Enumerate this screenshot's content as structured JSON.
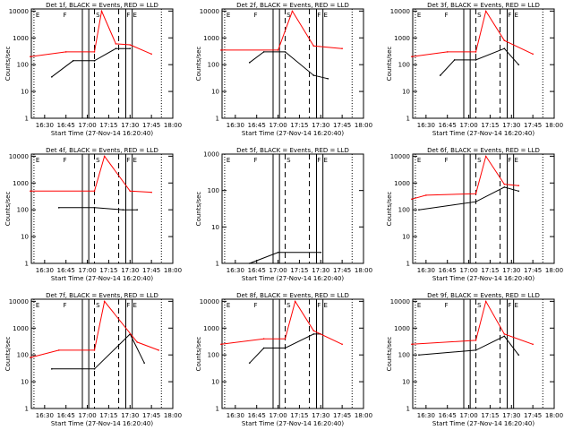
{
  "axis": {
    "ylabel": "Counts/sec",
    "xlabel": "Start Time (27-Nov-14 16:20:40)",
    "xticks": [
      "16:30",
      "16:45",
      "17:00",
      "17:15",
      "17:30",
      "17:45",
      "18:00"
    ],
    "yticks": [
      "1",
      "10",
      "100",
      "1000",
      "10000"
    ],
    "yticks_5f": [
      "1",
      "10",
      "100",
      "1000"
    ]
  },
  "colors": {
    "events": "#000000",
    "lld": "#ff0000"
  },
  "chart_data": [
    {
      "id": "det1f",
      "type": "line",
      "title": "Det 1f, BLACK = Events, RED = LLD",
      "ylog": true,
      "ylim": [
        1,
        12000
      ],
      "xlim": [
        "16:20:40",
        "18:00"
      ],
      "markers": [
        "E",
        "F",
        "S",
        "F",
        "E"
      ],
      "series": [
        {
          "name": "Events",
          "values_approx": [
            {
              "x": "16:35",
              "y": 35
            },
            {
              "x": "16:50",
              "y": 140
            },
            {
              "x": "17:05",
              "y": 140
            },
            {
              "x": "17:20",
              "y": 400
            },
            {
              "x": "17:30",
              "y": 400
            }
          ]
        },
        {
          "name": "LLD",
          "values_approx": [
            {
              "x": "16:20",
              "y": 200
            },
            {
              "x": "16:45",
              "y": 300
            },
            {
              "x": "17:05",
              "y": 300
            },
            {
              "x": "17:10",
              "y": 10000
            },
            {
              "x": "17:20",
              "y": 600
            },
            {
              "x": "17:30",
              "y": 550
            },
            {
              "x": "17:45",
              "y": 250
            }
          ]
        }
      ]
    },
    {
      "id": "det2f",
      "type": "line",
      "title": "Det 2f, BLACK = Events, RED = LLD",
      "ylog": true,
      "ylim": [
        1,
        12000
      ],
      "xlim": [
        "16:20:40",
        "18:00"
      ],
      "markers": [
        "E",
        "F",
        "S",
        "F",
        "E"
      ],
      "series": [
        {
          "name": "Events",
          "values_approx": [
            {
              "x": "16:40",
              "y": 120
            },
            {
              "x": "16:50",
              "y": 300
            },
            {
              "x": "17:05",
              "y": 300
            },
            {
              "x": "17:25",
              "y": 40
            },
            {
              "x": "17:35",
              "y": 30
            }
          ]
        },
        {
          "name": "LLD",
          "values_approx": [
            {
              "x": "16:20",
              "y": 350
            },
            {
              "x": "17:00",
              "y": 350
            },
            {
              "x": "17:10",
              "y": 10000
            },
            {
              "x": "17:25",
              "y": 500
            },
            {
              "x": "17:45",
              "y": 400
            }
          ]
        }
      ]
    },
    {
      "id": "det3f",
      "type": "line",
      "title": "Det 3f, BLACK = Events, RED = LLD",
      "ylog": true,
      "ylim": [
        1,
        12000
      ],
      "xlim": [
        "16:20:40",
        "18:00"
      ],
      "markers": [
        "E",
        "F",
        "S",
        "F",
        "E"
      ],
      "series": [
        {
          "name": "Events",
          "values_approx": [
            {
              "x": "16:40",
              "y": 40
            },
            {
              "x": "16:50",
              "y": 150
            },
            {
              "x": "17:05",
              "y": 150
            },
            {
              "x": "17:25",
              "y": 400
            },
            {
              "x": "17:35",
              "y": 100
            }
          ]
        },
        {
          "name": "LLD",
          "values_approx": [
            {
              "x": "16:20",
              "y": 200
            },
            {
              "x": "16:45",
              "y": 300
            },
            {
              "x": "17:05",
              "y": 300
            },
            {
              "x": "17:12",
              "y": 10000
            },
            {
              "x": "17:25",
              "y": 800
            },
            {
              "x": "17:45",
              "y": 250
            }
          ]
        }
      ]
    },
    {
      "id": "det4f",
      "type": "line",
      "title": "Det 4f, BLACK = Events, RED = LLD",
      "ylog": true,
      "ylim": [
        1,
        12000
      ],
      "xlim": [
        "16:20:40",
        "18:00"
      ],
      "markers": [
        "E",
        "F",
        "S",
        "F",
        "E"
      ],
      "series": [
        {
          "name": "Events",
          "values_approx": [
            {
              "x": "16:40",
              "y": 120
            },
            {
              "x": "17:05",
              "y": 120
            },
            {
              "x": "17:25",
              "y": 100
            },
            {
              "x": "17:35",
              "y": 100
            }
          ]
        },
        {
          "name": "LLD",
          "values_approx": [
            {
              "x": "16:20",
              "y": 500
            },
            {
              "x": "17:05",
              "y": 500
            },
            {
              "x": "17:12",
              "y": 10000
            },
            {
              "x": "17:30",
              "y": 500
            },
            {
              "x": "17:45",
              "y": 450
            }
          ]
        }
      ]
    },
    {
      "id": "det5f",
      "type": "line",
      "title": "Det 5f, BLACK = Events, RED = LLD",
      "ylog": true,
      "ylim": [
        1,
        1000
      ],
      "xlim": [
        "16:20:40",
        "18:00"
      ],
      "markers": [
        "E",
        "F",
        "S",
        "F",
        "E"
      ],
      "series": [
        {
          "name": "Events",
          "values_approx": [
            {
              "x": "16:40",
              "y": 1
            },
            {
              "x": "17:00",
              "y": 2
            },
            {
              "x": "17:30",
              "y": 2
            }
          ]
        }
      ]
    },
    {
      "id": "det6f",
      "type": "line",
      "title": "Det 6f, BLACK = Events, RED = LLD",
      "ylog": true,
      "ylim": [
        1,
        12000
      ],
      "xlim": [
        "16:20:40",
        "18:00"
      ],
      "markers": [
        "E",
        "F",
        "S",
        "F",
        "E"
      ],
      "series": [
        {
          "name": "Events",
          "values_approx": [
            {
              "x": "16:25",
              "y": 100
            },
            {
              "x": "17:05",
              "y": 200
            },
            {
              "x": "17:25",
              "y": 700
            },
            {
              "x": "17:35",
              "y": 500
            }
          ]
        },
        {
          "name": "LLD",
          "values_approx": [
            {
              "x": "16:20",
              "y": 250
            },
            {
              "x": "16:30",
              "y": 350
            },
            {
              "x": "17:05",
              "y": 400
            },
            {
              "x": "17:12",
              "y": 10000
            },
            {
              "x": "17:25",
              "y": 900
            },
            {
              "x": "17:35",
              "y": 800
            }
          ]
        }
      ]
    },
    {
      "id": "det7f",
      "type": "line",
      "title": "Det 7f, BLACK = Events, RED = LLD",
      "ylog": true,
      "ylim": [
        1,
        12000
      ],
      "xlim": [
        "16:20:40",
        "18:00"
      ],
      "markers": [
        "E",
        "F",
        "S",
        "F",
        "E"
      ],
      "series": [
        {
          "name": "Events",
          "values_approx": [
            {
              "x": "16:35",
              "y": 30
            },
            {
              "x": "17:05",
              "y": 30
            },
            {
              "x": "17:30",
              "y": 600
            },
            {
              "x": "17:40",
              "y": 50
            }
          ]
        },
        {
          "name": "LLD",
          "values_approx": [
            {
              "x": "16:20",
              "y": 80
            },
            {
              "x": "16:40",
              "y": 150
            },
            {
              "x": "17:05",
              "y": 150
            },
            {
              "x": "17:12",
              "y": 10000
            },
            {
              "x": "17:35",
              "y": 300
            },
            {
              "x": "17:50",
              "y": 150
            }
          ]
        }
      ]
    },
    {
      "id": "det8f",
      "type": "line",
      "title": "Det 8f, BLACK = Events, RED = LLD",
      "ylog": true,
      "ylim": [
        1,
        12000
      ],
      "xlim": [
        "16:20:40",
        "18:00"
      ],
      "markers": [
        "E",
        "F",
        "S",
        "F",
        "E"
      ],
      "series": [
        {
          "name": "Events",
          "values_approx": [
            {
              "x": "16:40",
              "y": 50
            },
            {
              "x": "16:50",
              "y": 180
            },
            {
              "x": "17:05",
              "y": 180
            },
            {
              "x": "17:25",
              "y": 600
            },
            {
              "x": "17:30",
              "y": 600
            }
          ]
        },
        {
          "name": "LLD",
          "values_approx": [
            {
              "x": "16:20",
              "y": 250
            },
            {
              "x": "16:50",
              "y": 400
            },
            {
              "x": "17:05",
              "y": 400
            },
            {
              "x": "17:12",
              "y": 10000
            },
            {
              "x": "17:25",
              "y": 800
            },
            {
              "x": "17:45",
              "y": 250
            }
          ]
        }
      ]
    },
    {
      "id": "det9f",
      "type": "line",
      "title": "Det 9f, BLACK = Events, RED = LLD",
      "ylog": true,
      "ylim": [
        1,
        12000
      ],
      "xlim": [
        "16:20:40",
        "18:00"
      ],
      "markers": [
        "E",
        "F",
        "S",
        "F",
        "E"
      ],
      "series": [
        {
          "name": "Events",
          "values_approx": [
            {
              "x": "16:25",
              "y": 100
            },
            {
              "x": "17:05",
              "y": 150
            },
            {
              "x": "17:25",
              "y": 500
            },
            {
              "x": "17:35",
              "y": 100
            }
          ]
        },
        {
          "name": "LLD",
          "values_approx": [
            {
              "x": "16:20",
              "y": 250
            },
            {
              "x": "17:05",
              "y": 350
            },
            {
              "x": "17:12",
              "y": 10000
            },
            {
              "x": "17:25",
              "y": 600
            },
            {
              "x": "17:45",
              "y": 250
            }
          ]
        }
      ]
    }
  ]
}
